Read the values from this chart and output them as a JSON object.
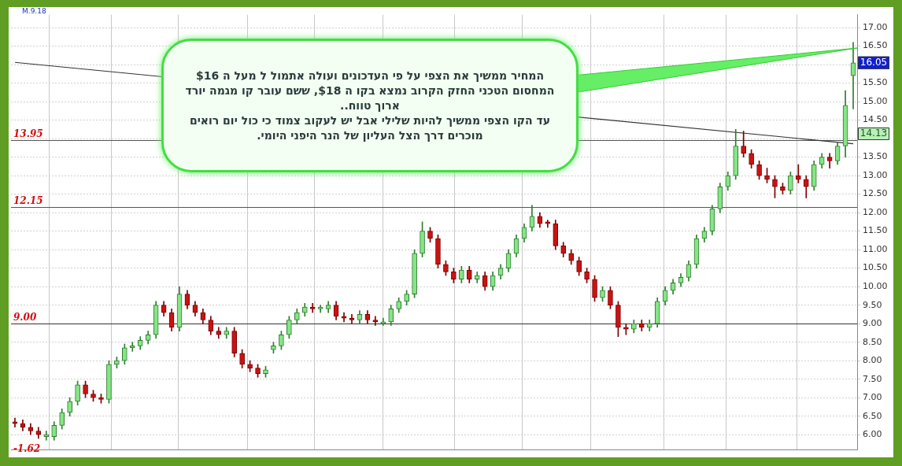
{
  "chart_data": {
    "type": "candlestick",
    "categories": [
      null,
      null,
      null,
      null,
      null,
      null,
      null,
      null,
      null,
      null,
      null,
      null,
      null,
      null,
      null,
      null,
      null,
      null,
      null,
      null,
      null,
      null,
      null,
      null,
      null,
      null,
      null,
      null,
      null,
      null,
      null,
      null,
      null,
      null,
      null,
      null,
      null,
      null,
      null,
      null,
      null,
      null,
      null,
      null,
      null,
      null,
      null,
      null,
      null,
      null,
      null,
      null,
      null,
      null,
      null,
      null,
      null,
      null,
      null,
      null,
      null,
      null,
      null,
      null,
      null,
      null,
      null,
      null,
      null,
      null,
      null,
      null,
      null,
      null,
      null,
      null,
      null,
      null,
      null,
      null,
      null,
      null,
      null,
      null,
      null,
      null,
      null,
      null,
      null,
      null,
      null,
      null,
      null,
      null,
      null,
      null,
      null,
      null,
      null,
      null,
      null,
      null,
      null,
      null,
      null,
      null,
      null,
      null
    ],
    "ohlc": [
      [
        6.35,
        6.45,
        6.2,
        6.3
      ],
      [
        6.3,
        6.4,
        6.1,
        6.2
      ],
      [
        6.2,
        6.3,
        6.0,
        6.1
      ],
      [
        6.1,
        6.2,
        5.9,
        6.0
      ],
      [
        5.95,
        6.1,
        5.85,
        6.0
      ],
      [
        5.95,
        6.35,
        5.85,
        6.25
      ],
      [
        6.25,
        6.7,
        6.15,
        6.6
      ],
      [
        6.6,
        7.0,
        6.5,
        6.9
      ],
      [
        6.9,
        7.45,
        6.8,
        7.35
      ],
      [
        7.35,
        7.45,
        7.0,
        7.1
      ],
      [
        7.1,
        7.2,
        6.9,
        7.0
      ],
      [
        7.0,
        7.1,
        6.85,
        6.95
      ],
      [
        6.95,
        8.0,
        6.85,
        7.9
      ],
      [
        7.9,
        8.1,
        7.8,
        8.0
      ],
      [
        8.0,
        8.45,
        7.9,
        8.35
      ],
      [
        8.35,
        8.5,
        8.25,
        8.4
      ],
      [
        8.4,
        8.65,
        8.3,
        8.55
      ],
      [
        8.55,
        8.8,
        8.45,
        8.7
      ],
      [
        8.7,
        9.6,
        8.6,
        9.5
      ],
      [
        9.5,
        9.6,
        9.2,
        9.3
      ],
      [
        9.3,
        9.4,
        8.8,
        8.9
      ],
      [
        8.9,
        10.0,
        8.8,
        9.8
      ],
      [
        9.8,
        9.9,
        9.4,
        9.5
      ],
      [
        9.5,
        9.6,
        9.2,
        9.3
      ],
      [
        9.3,
        9.4,
        9.0,
        9.1
      ],
      [
        9.1,
        9.2,
        8.7,
        8.8
      ],
      [
        8.8,
        8.9,
        8.6,
        8.7
      ],
      [
        8.7,
        8.9,
        8.6,
        8.8
      ],
      [
        8.8,
        8.9,
        8.1,
        8.2
      ],
      [
        8.2,
        8.3,
        7.8,
        7.9
      ],
      [
        7.9,
        8.0,
        7.7,
        7.8
      ],
      [
        7.8,
        7.9,
        7.55,
        7.65
      ],
      [
        7.65,
        7.85,
        7.55,
        7.75
      ],
      [
        8.3,
        8.5,
        8.2,
        8.4
      ],
      [
        8.4,
        8.8,
        8.3,
        8.7
      ],
      [
        8.7,
        9.2,
        8.6,
        9.1
      ],
      [
        9.1,
        9.4,
        9.0,
        9.3
      ],
      [
        9.3,
        9.55,
        9.2,
        9.45
      ],
      [
        9.45,
        9.55,
        9.3,
        9.4
      ],
      [
        9.4,
        9.5,
        9.3,
        9.45
      ],
      [
        9.4,
        9.6,
        9.3,
        9.5
      ],
      [
        9.5,
        9.6,
        9.1,
        9.2
      ],
      [
        9.2,
        9.3,
        9.05,
        9.15
      ],
      [
        9.15,
        9.25,
        9.0,
        9.1
      ],
      [
        9.1,
        9.35,
        9.0,
        9.25
      ],
      [
        9.25,
        9.35,
        9.0,
        9.1
      ],
      [
        9.1,
        9.2,
        8.95,
        9.05
      ],
      [
        9.0,
        9.15,
        8.95,
        9.05
      ],
      [
        9.05,
        9.5,
        8.95,
        9.4
      ],
      [
        9.4,
        9.7,
        9.3,
        9.6
      ],
      [
        9.6,
        9.9,
        9.5,
        9.8
      ],
      [
        9.8,
        11.0,
        9.7,
        10.9
      ],
      [
        10.9,
        11.75,
        10.8,
        11.5
      ],
      [
        11.5,
        11.6,
        11.2,
        11.3
      ],
      [
        11.3,
        11.4,
        10.5,
        10.6
      ],
      [
        10.6,
        10.7,
        10.3,
        10.4
      ],
      [
        10.4,
        10.5,
        10.1,
        10.2
      ],
      [
        10.2,
        10.55,
        10.1,
        10.45
      ],
      [
        10.45,
        10.55,
        10.1,
        10.2
      ],
      [
        10.2,
        10.4,
        10.1,
        10.3
      ],
      [
        10.3,
        10.4,
        9.9,
        10.0
      ],
      [
        10.0,
        10.4,
        9.9,
        10.3
      ],
      [
        10.3,
        10.6,
        10.2,
        10.5
      ],
      [
        10.5,
        11.0,
        10.4,
        10.9
      ],
      [
        10.9,
        11.4,
        10.8,
        11.3
      ],
      [
        11.3,
        11.7,
        11.2,
        11.6
      ],
      [
        11.6,
        12.2,
        11.5,
        11.9
      ],
      [
        11.9,
        12.0,
        11.6,
        11.7
      ],
      [
        11.75,
        11.8,
        11.6,
        11.7
      ],
      [
        11.7,
        11.8,
        11.0,
        11.1
      ],
      [
        11.1,
        11.2,
        10.8,
        10.9
      ],
      [
        10.9,
        11.0,
        10.6,
        10.7
      ],
      [
        10.7,
        10.8,
        10.3,
        10.4
      ],
      [
        10.4,
        10.5,
        10.1,
        10.2
      ],
      [
        10.2,
        10.3,
        9.6,
        9.7
      ],
      [
        9.7,
        10.0,
        9.6,
        9.9
      ],
      [
        9.9,
        10.0,
        9.4,
        9.5
      ],
      [
        9.5,
        9.6,
        8.65,
        8.9
      ],
      [
        8.9,
        9.0,
        8.7,
        8.85
      ],
      [
        8.85,
        9.1,
        8.75,
        9.0
      ],
      [
        9.0,
        9.1,
        8.8,
        8.9
      ],
      [
        8.9,
        9.1,
        8.8,
        9.0
      ],
      [
        9.0,
        9.7,
        8.9,
        9.6
      ],
      [
        9.6,
        10.0,
        9.5,
        9.9
      ],
      [
        9.9,
        10.2,
        9.8,
        10.1
      ],
      [
        10.1,
        10.35,
        10.0,
        10.25
      ],
      [
        10.25,
        10.7,
        10.15,
        10.6
      ],
      [
        10.6,
        11.4,
        10.5,
        11.3
      ],
      [
        11.3,
        11.6,
        11.2,
        11.5
      ],
      [
        11.5,
        12.2,
        11.4,
        12.1
      ],
      [
        12.1,
        12.8,
        12.0,
        12.7
      ],
      [
        12.7,
        13.1,
        12.6,
        13.0
      ],
      [
        13.0,
        14.25,
        12.9,
        13.8
      ],
      [
        13.8,
        14.2,
        13.5,
        13.6
      ],
      [
        13.6,
        13.7,
        13.2,
        13.3
      ],
      [
        13.3,
        13.4,
        12.9,
        13.0
      ],
      [
        13.0,
        13.2,
        12.8,
        12.9
      ],
      [
        12.9,
        13.0,
        12.4,
        12.7
      ],
      [
        12.7,
        12.8,
        12.5,
        12.6
      ],
      [
        12.6,
        13.1,
        12.5,
        13.0
      ],
      [
        13.0,
        13.3,
        12.8,
        12.9
      ],
      [
        12.9,
        13.0,
        12.4,
        12.7
      ],
      [
        12.7,
        13.4,
        12.6,
        13.3
      ],
      [
        13.3,
        13.6,
        13.2,
        13.5
      ],
      [
        13.5,
        13.6,
        13.2,
        13.4
      ],
      [
        13.4,
        13.9,
        13.3,
        13.8
      ],
      [
        13.8,
        15.3,
        13.5,
        14.9
      ],
      [
        15.7,
        16.6,
        14.8,
        16.05
      ]
    ],
    "series": [
      {
        "type": "line",
        "color": "#333333",
        "values": [
          16.06,
          null,
          null,
          null,
          null,
          null,
          null,
          null,
          null,
          null,
          null,
          null,
          null,
          null,
          null,
          null,
          null,
          null,
          null,
          null,
          null,
          null,
          null,
          null,
          null,
          null,
          null,
          null,
          null,
          null,
          null,
          null,
          null,
          null,
          null,
          null,
          null,
          null,
          null,
          null,
          null,
          null,
          null,
          null,
          null,
          null,
          null,
          null,
          null,
          null,
          null,
          null,
          null,
          null,
          null,
          null,
          null,
          null,
          null,
          null,
          null,
          null,
          null,
          null,
          null,
          null,
          null,
          null,
          null,
          null,
          null,
          null,
          null,
          null,
          null,
          null,
          null,
          null,
          null,
          null,
          null,
          null,
          null,
          null,
          null,
          null,
          null,
          null,
          null,
          null,
          null,
          null,
          null,
          null,
          null,
          null,
          null,
          null,
          null,
          null,
          null,
          null,
          null,
          null,
          null,
          null,
          null,
          13.86
        ]
      }
    ],
    "ylim": [
      5.6,
      17.35
    ],
    "yticks": [
      {
        "value": 6,
        "label": "6.00"
      },
      {
        "value": 6.5,
        "label": "6.50"
      },
      {
        "value": 7,
        "label": "7.00"
      },
      {
        "value": 7.5,
        "label": "7.50"
      },
      {
        "value": 8,
        "label": "8.00"
      },
      {
        "value": 8.5,
        "label": "8.50"
      },
      {
        "value": 9,
        "label": "9.00"
      },
      {
        "value": 9.5,
        "label": "9.50"
      },
      {
        "value": 10,
        "label": "10.00"
      },
      {
        "value": 10.5,
        "label": "10.50"
      },
      {
        "value": 11,
        "label": "11.00"
      },
      {
        "value": 11.5,
        "label": "11.50"
      },
      {
        "value": 12,
        "label": "12.00"
      },
      {
        "value": 12.5,
        "label": "12.50"
      },
      {
        "value": 13,
        "label": "13.00"
      },
      {
        "value": 13.5,
        "label": "13.50"
      },
      {
        "value": 14,
        "label": null
      },
      {
        "value": 14.5,
        "label": "14.50"
      },
      {
        "value": 15,
        "label": "15.00"
      },
      {
        "value": 15.5,
        "label": "15.50"
      },
      {
        "value": 16,
        "label": null
      },
      {
        "value": 16.5,
        "label": "16.50"
      },
      {
        "value": 17,
        "label": "17.00"
      }
    ],
    "grid": "y",
    "legend": false,
    "line_style": "solid",
    "marker": "none",
    "ref_lines": [
      {
        "axis": "y",
        "value": 13.95,
        "label": "13.95",
        "color": "#555555"
      },
      {
        "axis": "y",
        "value": 12.15,
        "label": "12.15",
        "color": "#555555"
      },
      {
        "axis": "y",
        "value": 9,
        "label": "9.00",
        "color": "#333333"
      }
    ],
    "annotations": [
      "המחיר ממשיך את הצפי על פי העדכונים ועולה אתמול ל מעל ה $16",
      "המחסום הטכני החזק הקרוב נמצא בקו ה $18, ששם עובר קו מגמה יורד ארוך טווח..",
      "עד הקו הצפי ממשיך להיות שלילי אבל יש לעקוב צמוד כי כול יום רואים מוכרים דרך הצל העליון של הנר היפני היומי.",
      "M.9.18",
      "-1.62",
      {
        "text": "16.05",
        "y": 16.05
      },
      {
        "text": "14.13",
        "y": 14.13
      }
    ]
  }
}
